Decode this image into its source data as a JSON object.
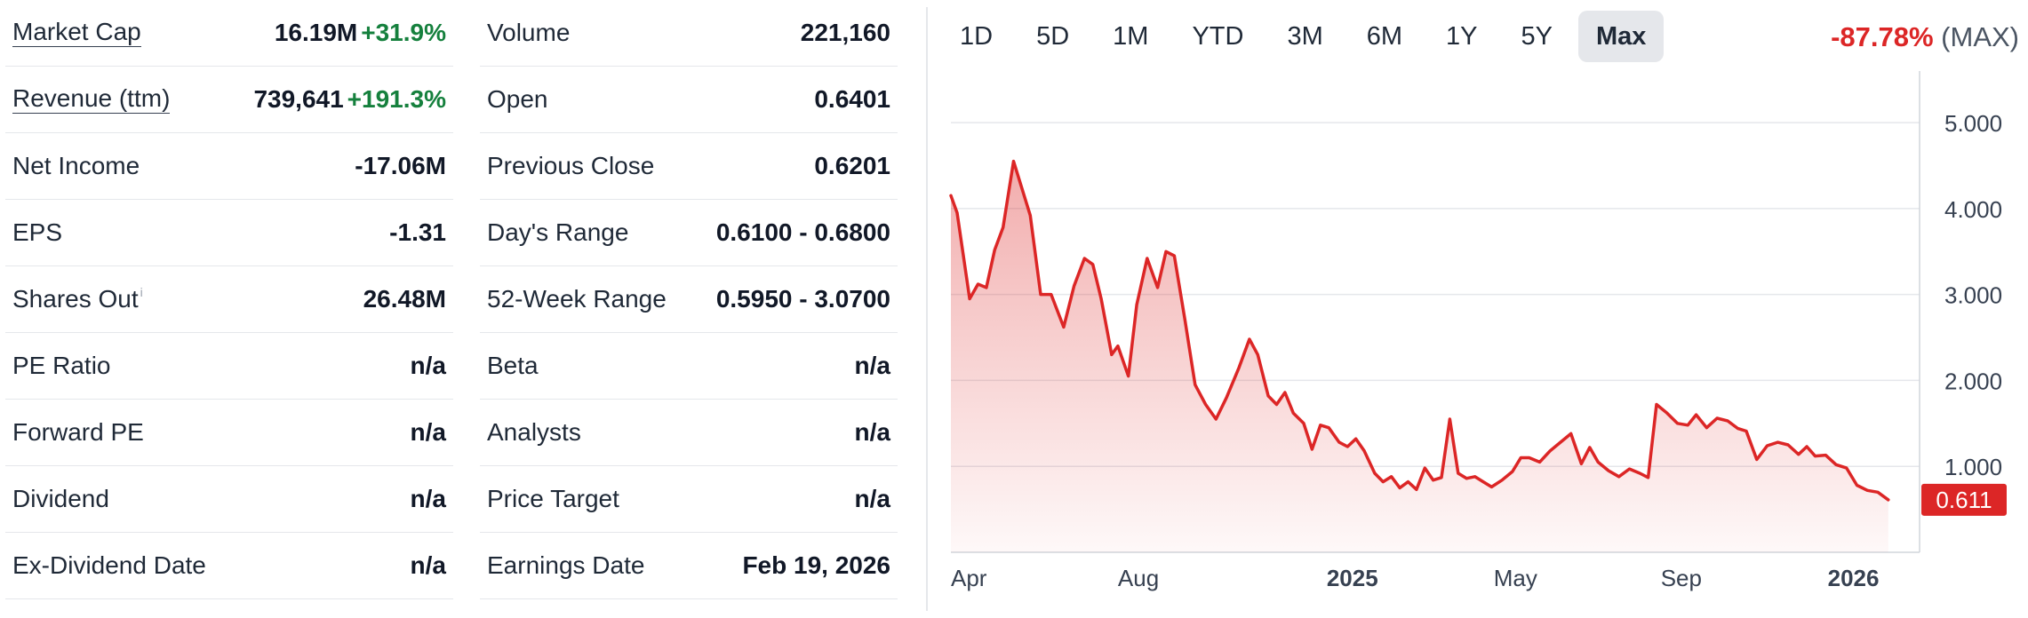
{
  "stats_left": [
    {
      "label": "Market Cap",
      "value": "16.19M",
      "change": "+31.9%",
      "underlined": true
    },
    {
      "label": "Revenue (ttm)",
      "value": "739,641",
      "change": "+191.3%",
      "underlined": true
    },
    {
      "label": "Net Income",
      "value": "-17.06M"
    },
    {
      "label": "EPS",
      "value": "-1.31"
    },
    {
      "label": "Shares Out",
      "value": "26.48M",
      "info": "i"
    },
    {
      "label": "PE Ratio",
      "value": "n/a"
    },
    {
      "label": "Forward PE",
      "value": "n/a"
    },
    {
      "label": "Dividend",
      "value": "n/a"
    },
    {
      "label": "Ex-Dividend Date",
      "value": "n/a"
    }
  ],
  "stats_right": [
    {
      "label": "Volume",
      "value": "221,160"
    },
    {
      "label": "Open",
      "value": "0.6401"
    },
    {
      "label": "Previous Close",
      "value": "0.6201"
    },
    {
      "label": "Day's Range",
      "value": "0.6100 - 0.6800"
    },
    {
      "label": "52-Week Range",
      "value": "0.5950 - 3.0700"
    },
    {
      "label": "Beta",
      "value": "n/a"
    },
    {
      "label": "Analysts",
      "value": "n/a"
    },
    {
      "label": "Price Target",
      "value": "n/a"
    },
    {
      "label": "Earnings Date",
      "value": "Feb 19, 2026"
    }
  ],
  "ranges": [
    "1D",
    "5D",
    "1M",
    "YTD",
    "3M",
    "6M",
    "1Y",
    "5Y",
    "Max"
  ],
  "active_range": "Max",
  "performance": {
    "change": "-87.78%",
    "period": "(MAX)"
  },
  "colors": {
    "line": "#dc2626",
    "positive": "#15803d",
    "negative": "#dc2626",
    "badge": "#dc2626"
  },
  "chart_data": {
    "type": "area",
    "title": "",
    "xlabel": "",
    "ylabel": "",
    "y_axis_side": "right",
    "ylim": [
      0,
      5.6
    ],
    "y_ticks": [
      1.0,
      2.0,
      3.0,
      4.0,
      5.0
    ],
    "y_tick_labels": [
      "1.000",
      "2.000",
      "3.000",
      "4.000",
      "5.000"
    ],
    "xlim": [
      0,
      23.2
    ],
    "x_ticks": [
      {
        "x": 0,
        "label": "Apr",
        "bold": false
      },
      {
        "x": 4,
        "label": "Aug",
        "bold": false
      },
      {
        "x": 9,
        "label": "2025",
        "bold": true
      },
      {
        "x": 13,
        "label": "May",
        "bold": false
      },
      {
        "x": 17,
        "label": "Sep",
        "bold": false
      },
      {
        "x": 21,
        "label": "2026",
        "bold": true
      }
    ],
    "grid": true,
    "last_value": "0.611",
    "series": [
      {
        "points": [
          [
            0.0,
            4.15
          ],
          [
            0.15,
            3.95
          ],
          [
            0.45,
            2.95
          ],
          [
            0.65,
            3.12
          ],
          [
            0.85,
            3.08
          ],
          [
            1.05,
            3.52
          ],
          [
            1.25,
            3.78
          ],
          [
            1.5,
            4.55
          ],
          [
            1.9,
            3.92
          ],
          [
            2.15,
            3.0
          ],
          [
            2.4,
            3.0
          ],
          [
            2.7,
            2.62
          ],
          [
            2.95,
            3.1
          ],
          [
            3.2,
            3.42
          ],
          [
            3.4,
            3.35
          ],
          [
            3.6,
            2.95
          ],
          [
            3.85,
            2.3
          ],
          [
            4.0,
            2.4
          ],
          [
            4.25,
            2.05
          ],
          [
            4.45,
            2.88
          ],
          [
            4.7,
            3.42
          ],
          [
            4.95,
            3.08
          ],
          [
            5.15,
            3.5
          ],
          [
            5.35,
            3.45
          ],
          [
            5.6,
            2.72
          ],
          [
            5.85,
            1.95
          ],
          [
            6.1,
            1.72
          ],
          [
            6.35,
            1.55
          ],
          [
            6.6,
            1.8
          ],
          [
            6.9,
            2.15
          ],
          [
            7.15,
            2.48
          ],
          [
            7.35,
            2.3
          ],
          [
            7.6,
            1.82
          ],
          [
            7.8,
            1.72
          ],
          [
            8.0,
            1.86
          ],
          [
            8.2,
            1.62
          ],
          [
            8.45,
            1.5
          ],
          [
            8.65,
            1.2
          ],
          [
            8.85,
            1.48
          ],
          [
            9.05,
            1.45
          ],
          [
            9.3,
            1.28
          ],
          [
            9.5,
            1.23
          ],
          [
            9.7,
            1.32
          ],
          [
            9.9,
            1.18
          ],
          [
            10.15,
            0.92
          ],
          [
            10.35,
            0.82
          ],
          [
            10.55,
            0.88
          ],
          [
            10.75,
            0.75
          ],
          [
            10.95,
            0.82
          ],
          [
            11.15,
            0.73
          ],
          [
            11.35,
            0.98
          ],
          [
            11.55,
            0.84
          ],
          [
            11.75,
            0.87
          ],
          [
            11.95,
            1.55
          ],
          [
            12.15,
            0.92
          ],
          [
            12.35,
            0.86
          ],
          [
            12.55,
            0.88
          ],
          [
            12.75,
            0.82
          ],
          [
            12.95,
            0.76
          ],
          [
            13.2,
            0.84
          ],
          [
            13.45,
            0.94
          ],
          [
            13.65,
            1.1
          ],
          [
            13.85,
            1.1
          ],
          [
            14.1,
            1.05
          ],
          [
            14.35,
            1.18
          ],
          [
            14.6,
            1.28
          ],
          [
            14.85,
            1.38
          ],
          [
            15.1,
            1.03
          ],
          [
            15.3,
            1.22
          ],
          [
            15.5,
            1.05
          ],
          [
            15.75,
            0.95
          ],
          [
            16.0,
            0.88
          ],
          [
            16.25,
            0.97
          ],
          [
            16.5,
            0.92
          ],
          [
            16.7,
            0.87
          ],
          [
            16.9,
            1.72
          ],
          [
            17.15,
            1.62
          ],
          [
            17.4,
            1.5
          ],
          [
            17.65,
            1.48
          ],
          [
            17.85,
            1.6
          ],
          [
            18.1,
            1.45
          ],
          [
            18.35,
            1.56
          ],
          [
            18.6,
            1.53
          ],
          [
            18.85,
            1.44
          ],
          [
            19.05,
            1.41
          ],
          [
            19.3,
            1.08
          ],
          [
            19.55,
            1.24
          ],
          [
            19.8,
            1.28
          ],
          [
            20.05,
            1.25
          ],
          [
            20.3,
            1.14
          ],
          [
            20.5,
            1.23
          ],
          [
            20.7,
            1.12
          ],
          [
            20.95,
            1.13
          ],
          [
            21.2,
            1.02
          ],
          [
            21.45,
            0.98
          ],
          [
            21.7,
            0.78
          ],
          [
            21.95,
            0.72
          ],
          [
            22.2,
            0.7
          ],
          [
            22.45,
            0.611
          ]
        ]
      }
    ]
  }
}
